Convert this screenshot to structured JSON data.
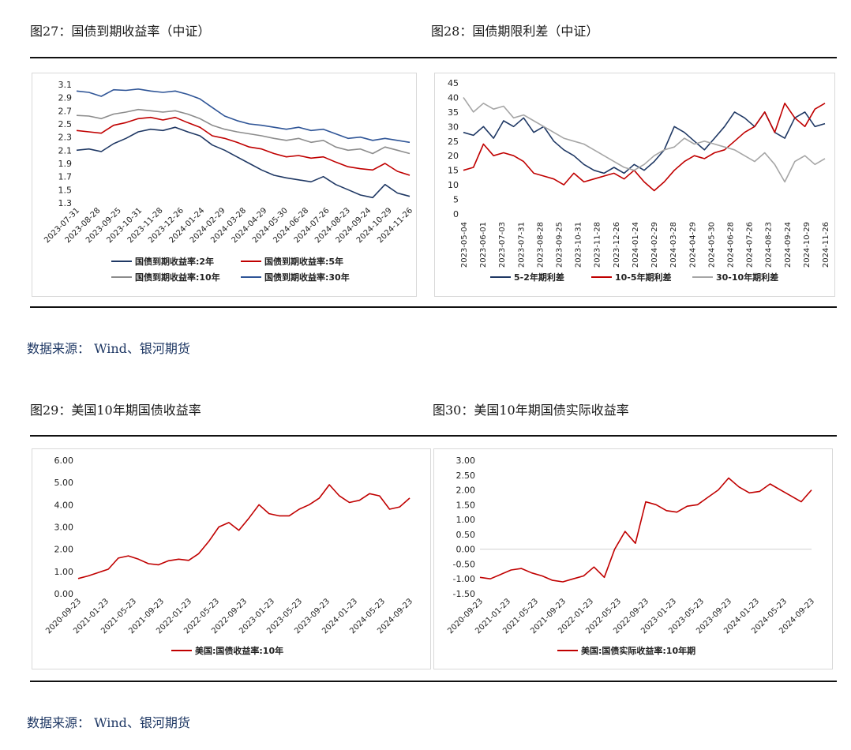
{
  "titles": {
    "fig27": "图27：国债到期收益率（中证）",
    "fig28": "图28：国债期限利差（中证）",
    "fig29": "图29：美国10年期国债收益率",
    "fig30": "图30：美国10年期国债实际收益率"
  },
  "sources": {
    "top": "数据来源：    Wind、银河期货",
    "bottom": "数据来源：    Wind、银河期货"
  },
  "chart_data": [
    {
      "id": "fig27",
      "type": "line",
      "ylim": [
        1.3,
        3.1
      ],
      "yticks": [
        "3.1",
        "2.9",
        "2.7",
        "2.5",
        "2.3",
        "2.1",
        "1.9",
        "1.7",
        "1.5",
        "1.3"
      ],
      "xticks": [
        "2023-07-31",
        "2023-08-28",
        "2023-09-25",
        "2023-10-31",
        "2023-11-28",
        "2023-12-26",
        "2024-01-24",
        "2024-02-29",
        "2024-03-28",
        "2024-04-29",
        "2024-05-30",
        "2024-06-28",
        "2024-07-26",
        "2024-08-23",
        "2024-09-24",
        "2024-10-29",
        "2024-11-26"
      ],
      "legend_position": "bottom",
      "series": [
        {
          "name": "国债到期收益率:2年",
          "color": "#1f3864",
          "values": [
            2.1,
            2.12,
            2.08,
            2.2,
            2.28,
            2.38,
            2.42,
            2.4,
            2.45,
            2.38,
            2.32,
            2.18,
            2.1,
            2.0,
            1.9,
            1.8,
            1.72,
            1.68,
            1.65,
            1.62,
            1.7,
            1.58,
            1.5,
            1.42,
            1.38,
            1.58,
            1.45,
            1.4
          ]
        },
        {
          "name": "国债到期收益率:5年",
          "color": "#c00000",
          "values": [
            2.4,
            2.38,
            2.36,
            2.48,
            2.52,
            2.58,
            2.6,
            2.56,
            2.6,
            2.52,
            2.45,
            2.32,
            2.28,
            2.22,
            2.15,
            2.12,
            2.05,
            2.0,
            2.02,
            1.98,
            2.0,
            1.92,
            1.85,
            1.82,
            1.8,
            1.9,
            1.78,
            1.72
          ]
        },
        {
          "name": "国债到期收益率:10年",
          "color": "#8c8c8c",
          "values": [
            2.63,
            2.62,
            2.58,
            2.65,
            2.68,
            2.72,
            2.7,
            2.68,
            2.7,
            2.65,
            2.58,
            2.48,
            2.42,
            2.38,
            2.35,
            2.32,
            2.28,
            2.25,
            2.28,
            2.22,
            2.25,
            2.15,
            2.1,
            2.12,
            2.05,
            2.15,
            2.1,
            2.05
          ]
        },
        {
          "name": "国债到期收益率:30年",
          "color": "#2f5597",
          "values": [
            3.0,
            2.98,
            2.92,
            3.02,
            3.01,
            3.03,
            3.0,
            2.98,
            3.0,
            2.95,
            2.88,
            2.75,
            2.62,
            2.55,
            2.5,
            2.48,
            2.45,
            2.42,
            2.45,
            2.4,
            2.42,
            2.35,
            2.28,
            2.3,
            2.25,
            2.28,
            2.25,
            2.22
          ]
        }
      ]
    },
    {
      "id": "fig28",
      "type": "line",
      "ylim": [
        0,
        45
      ],
      "yticks": [
        "45",
        "40",
        "35",
        "30",
        "25",
        "20",
        "15",
        "10",
        "5",
        "0"
      ],
      "xticks": [
        "2023-05-04",
        "2023-06-01",
        "2023-07-03",
        "2023-07-31",
        "2023-08-28",
        "2023-09-25",
        "2023-10-31",
        "2023-11-28",
        "2023-12-26",
        "2024-01-24",
        "2024-02-29",
        "2024-03-28",
        "2024-04-29",
        "2024-05-30",
        "2024-06-28",
        "2024-07-26",
        "2024-08-23",
        "2024-09-24",
        "2024-10-29",
        "2024-11-26"
      ],
      "legend_position": "bottom",
      "series": [
        {
          "name": "5-2年期利差",
          "color": "#1f3864",
          "values": [
            28,
            27,
            30,
            26,
            32,
            30,
            33,
            28,
            30,
            25,
            22,
            20,
            17,
            15,
            14,
            16,
            14,
            17,
            15,
            18,
            22,
            30,
            28,
            25,
            22,
            26,
            30,
            35,
            33,
            30,
            35,
            28,
            26,
            33,
            35,
            30,
            31
          ]
        },
        {
          "name": "10-5年期利差",
          "color": "#c00000",
          "values": [
            15,
            16,
            24,
            20,
            21,
            20,
            18,
            14,
            13,
            12,
            10,
            14,
            11,
            12,
            13,
            14,
            12,
            15,
            11,
            8,
            11,
            15,
            18,
            20,
            19,
            21,
            22,
            25,
            28,
            30,
            35,
            28,
            38,
            33,
            30,
            36,
            38
          ]
        },
        {
          "name": "30-10年期利差",
          "color": "#a6a6a6",
          "values": [
            40,
            35,
            38,
            36,
            37,
            33,
            34,
            32,
            30,
            28,
            26,
            25,
            24,
            22,
            20,
            18,
            16,
            15,
            17,
            20,
            22,
            23,
            26,
            24,
            25,
            24,
            23,
            22,
            20,
            18,
            21,
            17,
            11,
            18,
            20,
            17,
            19
          ]
        }
      ]
    },
    {
      "id": "fig29",
      "type": "line",
      "ylim": [
        0,
        6
      ],
      "yticks": [
        "6.00",
        "5.00",
        "4.00",
        "3.00",
        "2.00",
        "1.00",
        "0.00"
      ],
      "xticks": [
        "2020-09-23",
        "2021-01-23",
        "2021-05-23",
        "2021-09-23",
        "2022-01-23",
        "2022-05-23",
        "2022-09-23",
        "2023-01-23",
        "2023-05-23",
        "2023-09-23",
        "2024-01-23",
        "2024-05-23",
        "2024-09-23"
      ],
      "legend_position": "bottom",
      "series": [
        {
          "name": "美国:国债收益率:10年",
          "color": "#c00000",
          "values": [
            0.68,
            0.8,
            0.95,
            1.1,
            1.6,
            1.7,
            1.55,
            1.35,
            1.3,
            1.48,
            1.55,
            1.5,
            1.8,
            2.35,
            3.0,
            3.2,
            2.85,
            3.4,
            4.0,
            3.6,
            3.5,
            3.5,
            3.8,
            4.0,
            4.3,
            4.9,
            4.4,
            4.1,
            4.2,
            4.5,
            4.4,
            3.8,
            3.9,
            4.3
          ]
        }
      ]
    },
    {
      "id": "fig30",
      "type": "line",
      "ylim": [
        -1.5,
        3.0
      ],
      "yticks": [
        "3.00",
        "2.50",
        "2.00",
        "1.50",
        "1.00",
        "0.50",
        "0.00",
        "-0.50",
        "-1.00",
        "-1.50"
      ],
      "xticks": [
        "2020-09-23",
        "2021-01-23",
        "2021-05-23",
        "2021-09-23",
        "2022-01-23",
        "2022-05-23",
        "2022-09-23",
        "2023-01-23",
        "2023-05-23",
        "2023-09-23",
        "2024-01-23",
        "2024-05-23",
        "2024-09-23"
      ],
      "legend_position": "bottom",
      "series": [
        {
          "name": "美国:国债实际收益率:10年期",
          "color": "#c00000",
          "values": [
            -0.95,
            -1.0,
            -0.85,
            -0.7,
            -0.65,
            -0.8,
            -0.9,
            -1.05,
            -1.1,
            -1.0,
            -0.9,
            -0.6,
            -0.95,
            0.0,
            0.6,
            0.2,
            1.6,
            1.5,
            1.3,
            1.25,
            1.45,
            1.5,
            1.75,
            2.0,
            2.4,
            2.1,
            1.9,
            1.95,
            2.2,
            2.0,
            1.8,
            1.6,
            2.0
          ]
        }
      ]
    }
  ]
}
